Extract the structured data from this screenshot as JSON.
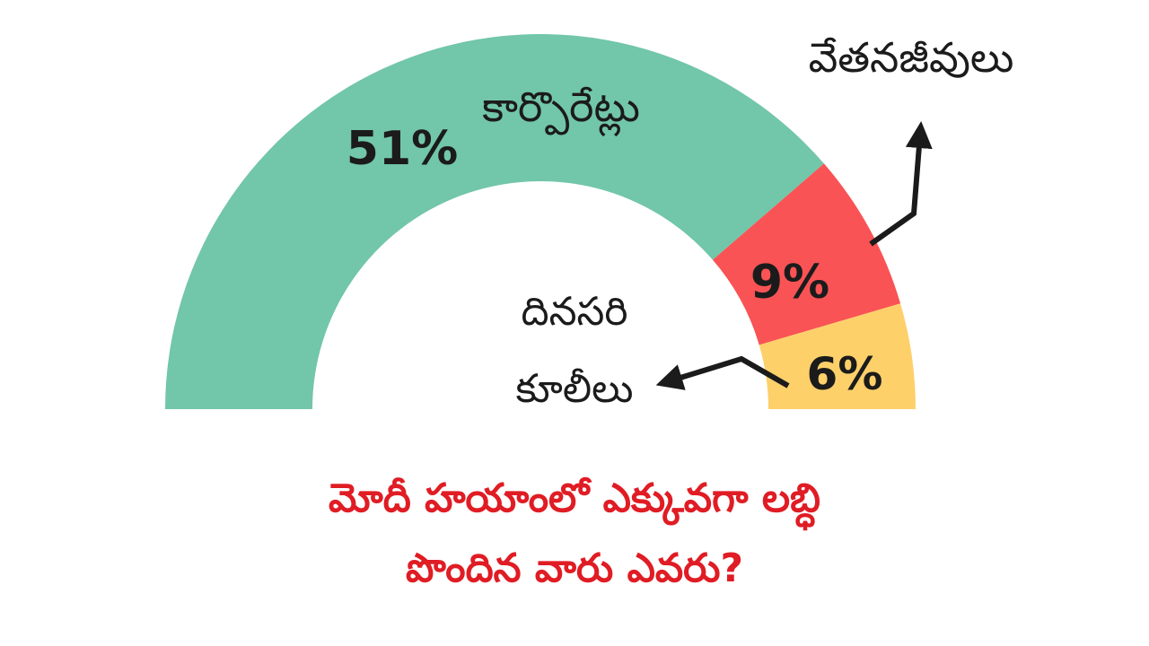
{
  "chart_data": {
    "type": "pie",
    "style": "semicircle-gauge",
    "title_lines": [
      "మోదీ హయాంలో ఎక్కువగా లబ్ధి",
      "పొందిన వారు ఎవరు?"
    ],
    "segments": [
      {
        "label": "కార్పొరేట్లు",
        "value": 51,
        "value_label": "51%",
        "color": "#72c6a9"
      },
      {
        "label": "వేతనజీవులు",
        "value": 9,
        "value_label": "9%",
        "color": "#f95355"
      },
      {
        "label_lines": [
          "దినసరి",
          "కూలీలు"
        ],
        "value": 6,
        "value_label": "6%",
        "color": "#fdd06a"
      }
    ],
    "scale_total": 66
  }
}
